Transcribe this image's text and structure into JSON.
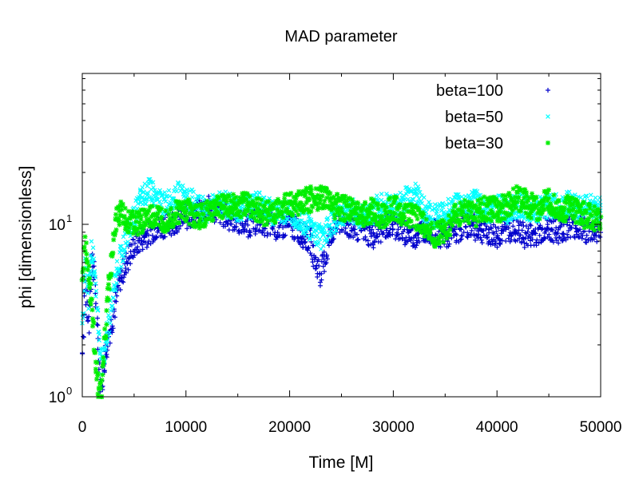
{
  "chart_data": {
    "type": "scatter",
    "title": "MAD parameter",
    "xlabel": "Time [M]",
    "ylabel": "phi [dimensionless]",
    "xlim": [
      0,
      50000
    ],
    "ylim": [
      1,
      75
    ],
    "yscale": "log",
    "legend_position": "top-right",
    "x_ticks": [
      {
        "value": 0,
        "label": "0"
      },
      {
        "value": 10000,
        "label": "10000"
      },
      {
        "value": 20000,
        "label": "20000"
      },
      {
        "value": 30000,
        "label": "30000"
      },
      {
        "value": 40000,
        "label": "40000"
      },
      {
        "value": 50000,
        "label": "50000"
      }
    ],
    "y_ticks": [
      {
        "value": 1,
        "base": "10",
        "exp": "0"
      },
      {
        "value": 10,
        "base": "10",
        "exp": "1"
      }
    ],
    "series": [
      {
        "name": "beta=100",
        "marker": "+",
        "color": "#0000cc",
        "x": [
          0,
          300,
          600,
          900,
          1200,
          1500,
          1800,
          2100,
          2500,
          3000,
          3500,
          4000,
          4500,
          5000,
          6000,
          7000,
          8000,
          9000,
          10000,
          11000,
          12000,
          13000,
          14000,
          15000,
          16000,
          17000,
          18000,
          19000,
          20000,
          21000,
          22000,
          22500,
          23000,
          23500,
          24000,
          25000,
          26000,
          27000,
          28000,
          29000,
          30000,
          31000,
          32000,
          33000,
          34000,
          35000,
          36000,
          37000,
          38000,
          39000,
          40000,
          41000,
          42000,
          43000,
          44000,
          45000,
          46000,
          47000,
          48000,
          49000,
          50000
        ],
        "y": [
          1.8,
          4.5,
          2.5,
          6.5,
          5.0,
          2.0,
          1.1,
          1.5,
          2.2,
          3.0,
          4.5,
          5.5,
          6.5,
          7.5,
          8.5,
          9.5,
          10.0,
          10.5,
          11.0,
          11.5,
          12.5,
          12.0,
          11.0,
          10.5,
          10.0,
          10.5,
          10.0,
          9.5,
          10.0,
          9.0,
          8.0,
          6.0,
          5.2,
          6.5,
          9.0,
          10.5,
          9.5,
          9.5,
          8.5,
          9.5,
          10.0,
          9.0,
          8.5,
          9.5,
          9.0,
          8.5,
          9.0,
          10.0,
          9.5,
          9.0,
          8.5,
          9.5,
          9.0,
          8.5,
          9.0,
          9.5,
          9.0,
          10.0,
          9.5,
          9.0,
          9.5
        ]
      },
      {
        "name": "beta=50",
        "marker": "x",
        "color": "#00ffff",
        "x": [
          0,
          300,
          600,
          900,
          1200,
          1500,
          1800,
          2100,
          2500,
          3000,
          3500,
          4000,
          4500,
          5000,
          5500,
          6000,
          6500,
          7000,
          8000,
          9000,
          10000,
          11000,
          12000,
          13000,
          14000,
          15000,
          16000,
          17000,
          18000,
          19000,
          20000,
          21000,
          22000,
          23000,
          24000,
          25000,
          26000,
          27000,
          28000,
          29000,
          30000,
          31000,
          32000,
          32500,
          33000,
          34000,
          35000,
          36000,
          37000,
          38000,
          39000,
          40000,
          41000,
          42000,
          43000,
          44000,
          45000,
          46000,
          47000,
          48000,
          49000,
          50000
        ],
        "y": [
          2.5,
          6.0,
          3.5,
          7.5,
          5.5,
          3.0,
          1.5,
          1.8,
          2.5,
          4.0,
          6.0,
          7.5,
          9.0,
          11.0,
          13.0,
          15.0,
          17.0,
          14.0,
          13.0,
          15.0,
          14.0,
          13.0,
          12.0,
          13.5,
          13.0,
          12.0,
          12.5,
          13.0,
          12.0,
          11.5,
          12.0,
          11.0,
          9.5,
          8.5,
          10.0,
          11.5,
          12.0,
          11.0,
          12.0,
          13.0,
          12.5,
          13.5,
          15.5,
          14.0,
          12.0,
          11.0,
          11.5,
          13.0,
          12.5,
          13.5,
          12.0,
          12.5,
          12.0,
          13.0,
          12.5,
          12.0,
          13.0,
          12.5,
          13.5,
          12.0,
          13.0,
          12.0
        ]
      },
      {
        "name": "beta=30",
        "marker": "*",
        "color": "#00ee00",
        "x": [
          0,
          300,
          600,
          900,
          1200,
          1500,
          1800,
          2100,
          2500,
          3000,
          3500,
          4000,
          5000,
          6000,
          7000,
          8000,
          9000,
          10000,
          11000,
          12000,
          13000,
          14000,
          15000,
          16000,
          17000,
          18000,
          19000,
          20000,
          21000,
          22000,
          23000,
          24000,
          25000,
          26000,
          27000,
          28000,
          29000,
          30000,
          31000,
          32000,
          33000,
          34000,
          35000,
          36000,
          37000,
          38000,
          39000,
          40000,
          41000,
          42000,
          43000,
          44000,
          45000,
          46000,
          47000,
          48000,
          49000,
          50000
        ],
        "y": [
          4.5,
          8.0,
          5.0,
          3.5,
          2.0,
          1.2,
          1.0,
          1.8,
          4.0,
          8.0,
          12.0,
          11.0,
          10.0,
          10.5,
          11.0,
          10.5,
          11.5,
          12.0,
          11.0,
          11.5,
          12.5,
          13.0,
          12.5,
          13.5,
          12.0,
          11.5,
          12.5,
          13.0,
          13.5,
          14.0,
          14.5,
          13.0,
          12.5,
          12.0,
          11.5,
          12.0,
          11.0,
          12.5,
          11.5,
          11.0,
          10.0,
          8.5,
          9.5,
          11.0,
          12.0,
          11.5,
          12.5,
          12.0,
          13.0,
          14.5,
          13.0,
          12.5,
          13.5,
          12.0,
          12.5,
          11.5,
          11.0,
          10.5
        ]
      }
    ]
  }
}
